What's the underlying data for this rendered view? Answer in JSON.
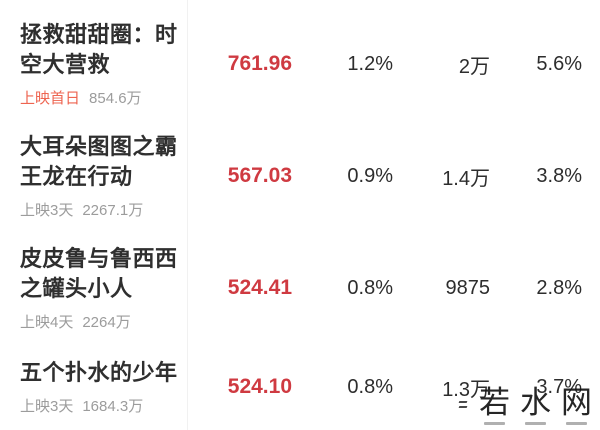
{
  "colors": {
    "value_red": "#cf3a41",
    "tag_highlight_red": "#ee6450",
    "text_dark": "#2d2d2d",
    "text_gray": "#9c9c9c"
  },
  "table": {
    "rows": [
      {
        "title": "拯救甜甜圈：时空大营救",
        "release_tag": "上映首日",
        "tag_highlight": true,
        "total_gross": "854.6万",
        "value": "761.96",
        "pct1": "1.2%",
        "count": "2万",
        "pct2": "5.6%"
      },
      {
        "title": "大耳朵图图之霸王龙在行动",
        "release_tag": "上映3天",
        "tag_highlight": false,
        "total_gross": "2267.1万",
        "value": "567.03",
        "pct1": "0.9%",
        "count": "1.4万",
        "pct2": "3.8%"
      },
      {
        "title": "皮皮鲁与鲁西西之罐头小人",
        "release_tag": "上映4天",
        "tag_highlight": false,
        "total_gross": "2264万",
        "value": "524.41",
        "pct1": "0.8%",
        "count": "9875",
        "pct2": "2.8%"
      },
      {
        "title": "五个扑水的少年",
        "release_tag": "上映3天",
        "tag_highlight": false,
        "total_gross": "1684.3万",
        "value": "524.10",
        "pct1": "0.8%",
        "count": "1.3万",
        "pct2": "3.7%"
      }
    ]
  },
  "watermark": {
    "text": "若水网",
    "char1": "若",
    "char2": "水",
    "char3": "网"
  }
}
